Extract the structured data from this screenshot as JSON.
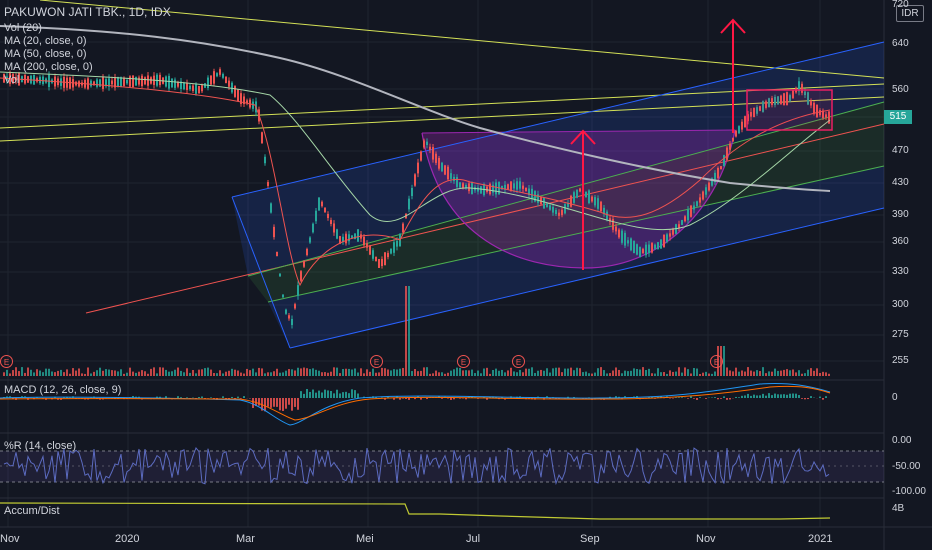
{
  "header": {
    "title": "PAKUWON JATI TBK., 1D, IDX",
    "legend": [
      "Vol (20)",
      "MA (20, close, 0)",
      "MA (50, close, 0)",
      "MA (200, close, 0)",
      "Vol"
    ]
  },
  "currency": "IDR",
  "last_price": "515",
  "price_axis": [
    "720",
    "640",
    "560",
    "515",
    "470",
    "430",
    "390",
    "360",
    "330",
    "300",
    "275",
    "255"
  ],
  "x_axis": [
    "Nov",
    "2020",
    "Mar",
    "Mei",
    "Jul",
    "Sep",
    "Nov",
    "2021"
  ],
  "earnings_marker": "E",
  "macd": {
    "label": "MACD (12, 26, close, 9)",
    "tick": "0"
  },
  "williams_r": {
    "label": "%R (14, close)",
    "ticks": [
      "0.00",
      "-50.00",
      "-100.00"
    ]
  },
  "accum_dist": {
    "label": "Accum/Dist",
    "tick": "4B"
  },
  "colors": {
    "background": "#131722",
    "up": "#26a69a",
    "down": "#ef5350",
    "channel": "#2962ff",
    "cup": "#9c27b0",
    "ma20": "#ef5350",
    "ma50": "#a5d6a7",
    "ma200": "#b2b5be",
    "trendline": "#d4e157",
    "arrow": "#ff1744",
    "box": "#e91e63",
    "wr": "#5c6bc0"
  },
  "chart_data": {
    "type": "candlestick",
    "title": "PAKUWON JATI TBK., 1D, IDX",
    "ylim": [
      245,
      730
    ],
    "x": [
      "2019-11",
      "2019-12",
      "2020-01",
      "2020-02",
      "2020-03",
      "2020-04",
      "2020-05",
      "2020-06",
      "2020-07",
      "2020-08",
      "2020-09",
      "2020-10",
      "2020-11",
      "2020-12",
      "2021-01"
    ],
    "close_approx": [
      575,
      565,
      560,
      565,
      330,
      370,
      385,
      450,
      455,
      440,
      400,
      400,
      470,
      545,
      515
    ],
    "series": [
      {
        "name": "MA (20, close, 0)"
      },
      {
        "name": "MA (50, close, 0)"
      },
      {
        "name": "MA (200, close, 0)"
      }
    ],
    "annotations": [
      "ascending channel",
      "cup and handle",
      "target arrows",
      "consolidation box"
    ]
  }
}
